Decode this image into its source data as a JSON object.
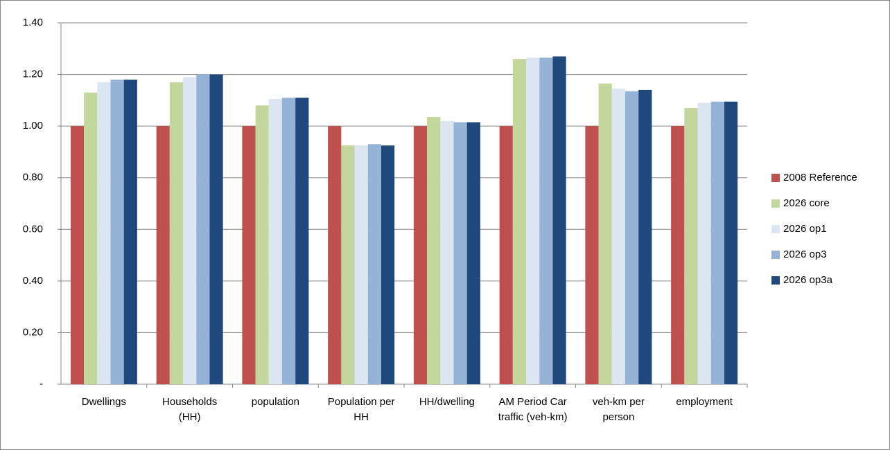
{
  "chart_data": {
    "type": "bar",
    "categories": [
      "Dwellings",
      "Households (HH)",
      "population",
      "Population per HH",
      "HH/dwelling",
      "AM Period Car traffic (veh-km)",
      "veh-km per person",
      "employment"
    ],
    "series": [
      {
        "name": "2008 Reference",
        "color": "#c0504d",
        "values": [
          1.0,
          1.0,
          1.0,
          1.0,
          1.0,
          1.0,
          1.0,
          1.0
        ]
      },
      {
        "name": "2026 core",
        "color": "#c3d69b",
        "values": [
          1.13,
          1.17,
          1.08,
          0.925,
          1.035,
          1.26,
          1.165,
          1.07
        ]
      },
      {
        "name": "2026 op1",
        "color": "#dce6f2",
        "values": [
          1.17,
          1.19,
          1.105,
          0.925,
          1.02,
          1.265,
          1.145,
          1.09
        ]
      },
      {
        "name": "2026 op3",
        "color": "#95b3d7",
        "values": [
          1.18,
          1.2,
          1.11,
          0.93,
          1.015,
          1.265,
          1.135,
          1.095
        ]
      },
      {
        "name": "2026 op3a",
        "color": "#1f497d",
        "values": [
          1.18,
          1.2,
          1.11,
          0.925,
          1.015,
          1.27,
          1.14,
          1.095
        ]
      }
    ],
    "ylim": [
      0,
      1.4
    ],
    "yticks": [
      {
        "value": 0,
        "label": "-"
      },
      {
        "value": 0.2,
        "label": "0.20"
      },
      {
        "value": 0.4,
        "label": "0.40"
      },
      {
        "value": 0.6,
        "label": "0.60"
      },
      {
        "value": 0.8,
        "label": "0.80"
      },
      {
        "value": 1.0,
        "label": "1.00"
      },
      {
        "value": 1.2,
        "label": "1.20"
      },
      {
        "value": 1.4,
        "label": "1.40"
      }
    ],
    "grid": true,
    "legend": "right"
  }
}
